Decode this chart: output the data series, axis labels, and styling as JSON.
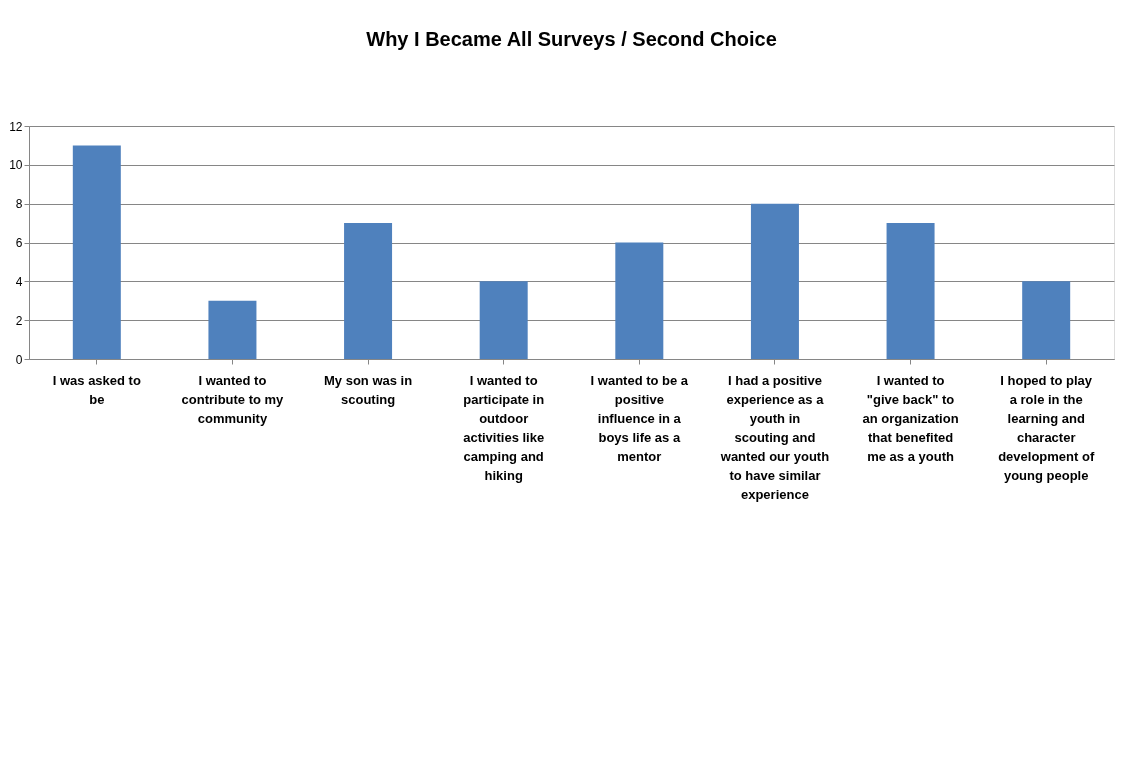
{
  "chart_data": {
    "type": "bar",
    "title": "Why I Became All Surveys / Second Choice",
    "categories": [
      "I was asked to be",
      "I wanted to contribute to my community",
      "My son was in scouting",
      "I wanted to participate in outdoor activities like camping and hiking",
      "I wanted to be a positive influence in a boys life as a mentor",
      "I had a positive experience as a youth in scouting and wanted our youth to have similar experience",
      "I wanted to \"give back\" to an organization that benefited me as a youth",
      "I hoped to play a role in the learning and character development of young people"
    ],
    "values": [
      11,
      3,
      7,
      4,
      6,
      8,
      7,
      4
    ],
    "color": "#4f81bd",
    "ylim": [
      0,
      12
    ],
    "yticks": [
      0,
      2,
      4,
      6,
      8,
      10,
      12
    ],
    "grid": "y"
  }
}
